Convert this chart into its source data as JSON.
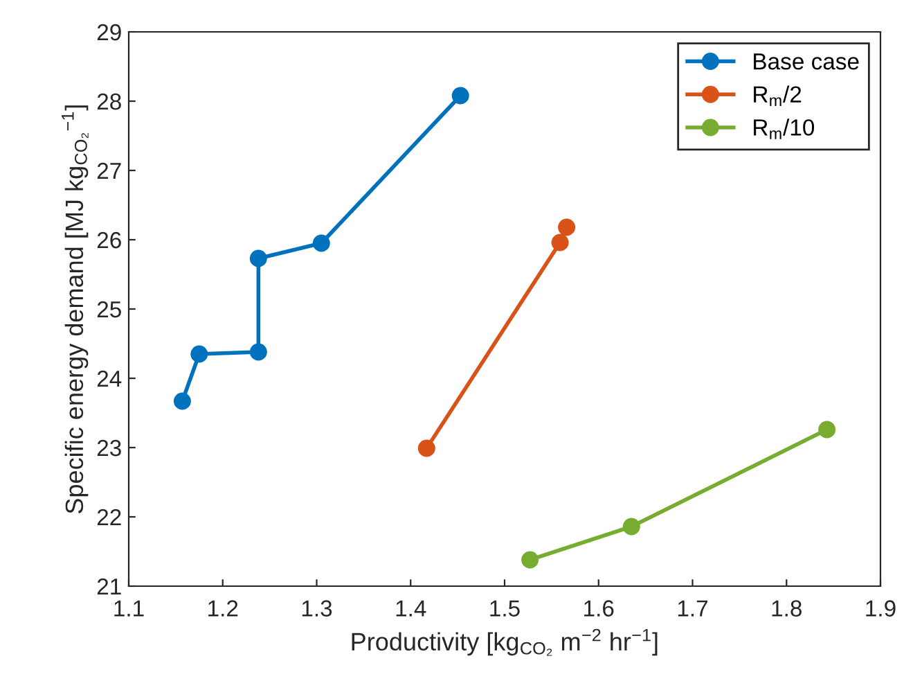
{
  "chart_data": {
    "type": "line",
    "xlabel": "Productivity [kg$_{CO₂}$ m$^{−2}$ hr$^{−1}$]",
    "ylabel": "Specific energy demand [MJ kg$_{CO₂}$$^{−1}$]",
    "series": [
      {
        "name": "Base case",
        "color": "#0072bd",
        "x": [
          1.157,
          1.175,
          1.238,
          1.238,
          1.305,
          1.453
        ],
        "values": [
          23.67,
          24.35,
          24.38,
          25.73,
          25.95,
          28.08
        ]
      },
      {
        "name": "R$_{m}$/2",
        "color": "#d95319",
        "x": [
          1.417,
          1.559,
          1.566
        ],
        "values": [
          22.99,
          25.96,
          26.18
        ]
      },
      {
        "name": "R$_{m}$/10",
        "color": "#77ac30",
        "x": [
          1.527,
          1.635,
          1.843
        ],
        "values": [
          21.38,
          21.86,
          23.26
        ]
      }
    ],
    "xlim": [
      1.1,
      1.9
    ],
    "xticks": [
      1.1,
      1.2,
      1.3,
      1.4,
      1.5,
      1.6,
      1.7,
      1.8,
      1.9
    ],
    "ylim": [
      21,
      29
    ],
    "yticks": [
      21,
      22,
      23,
      24,
      25,
      26,
      27,
      28,
      29
    ],
    "grid": false,
    "legend": "top right",
    "marker": "circle",
    "line_style": "solid"
  }
}
